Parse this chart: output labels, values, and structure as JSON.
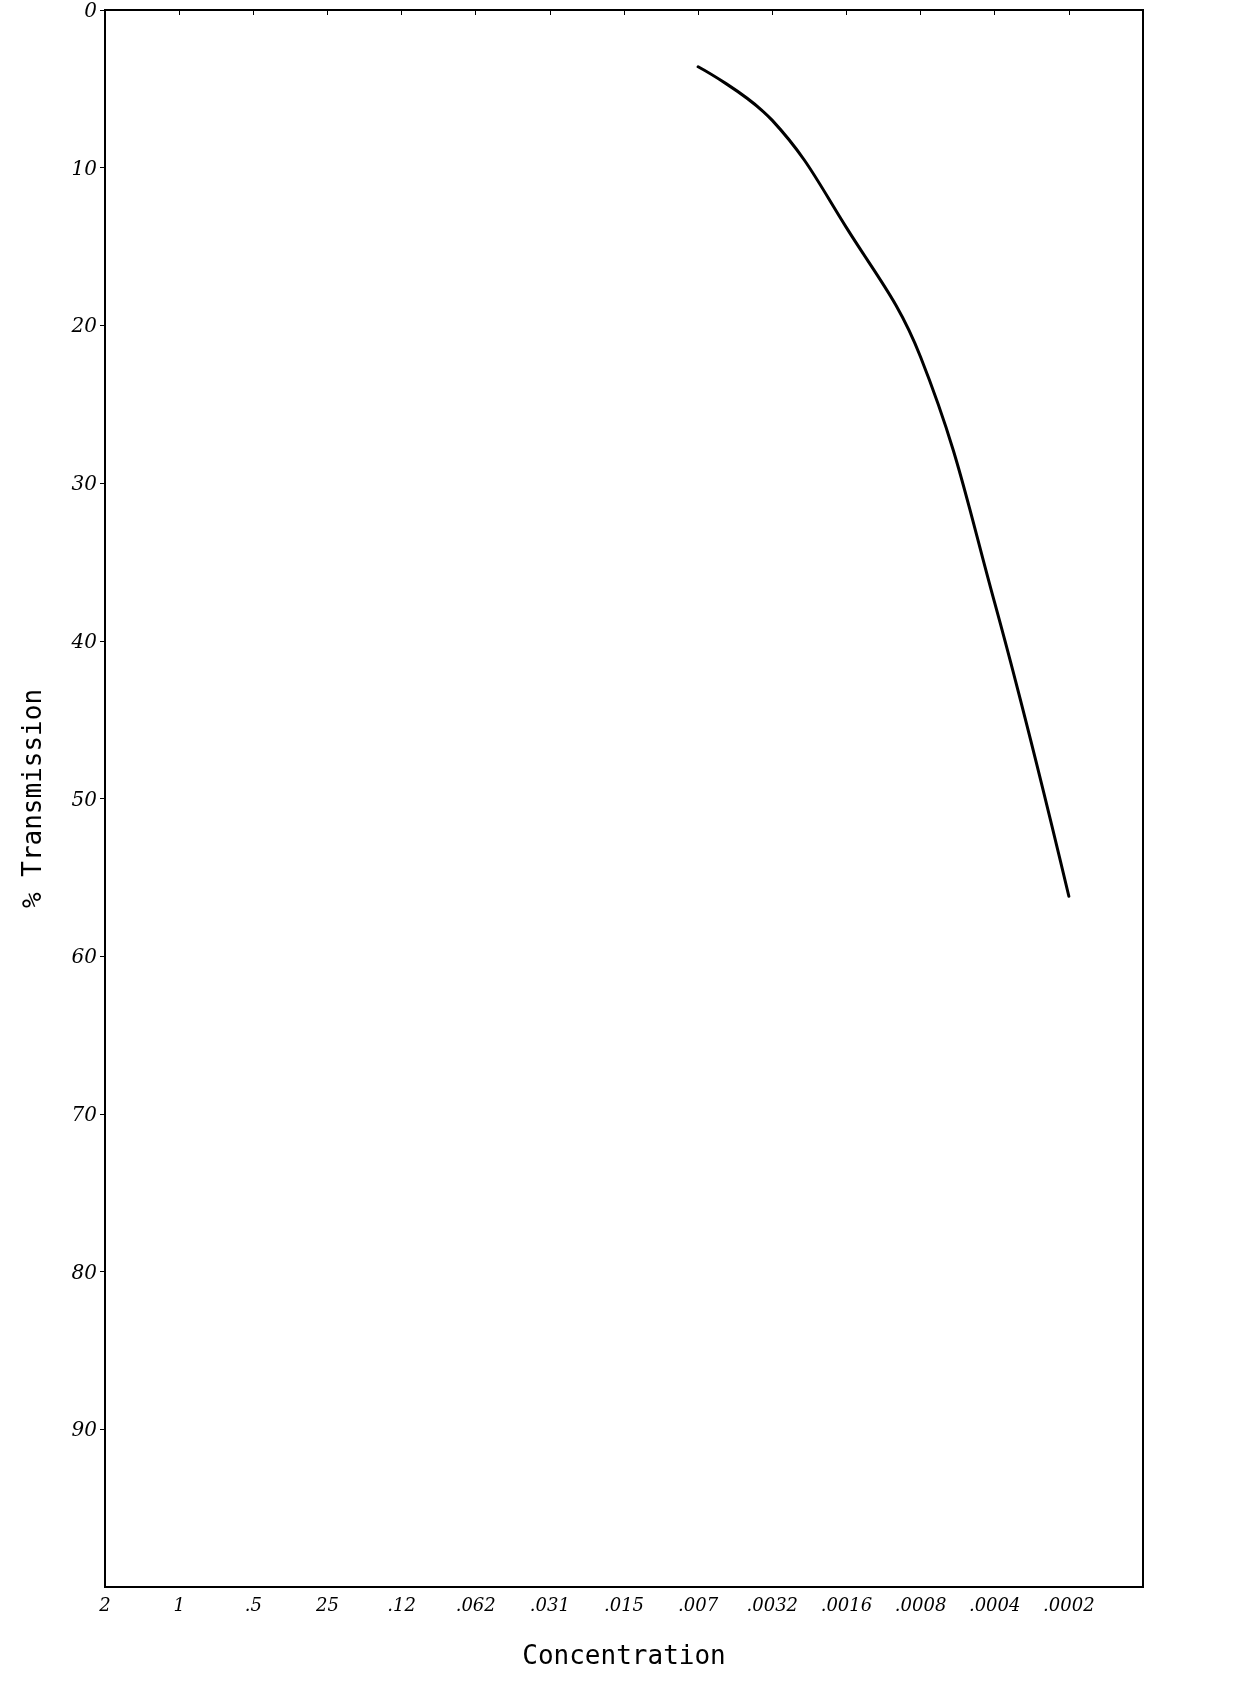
{
  "chart_data": {
    "type": "line",
    "xlabel": "Concentration",
    "ylabel": "% Transmission",
    "categories": [
      "2",
      "1",
      ".5",
      "25",
      ".12",
      ".062",
      ".031",
      ".015",
      ".007",
      ".0032",
      ".0016",
      ".0008",
      ".0004",
      ".0002",
      null
    ],
    "series": [
      {
        "color": "#000000",
        "values": [
          null,
          null,
          null,
          null,
          null,
          null,
          null,
          null,
          3.6,
          7,
          13.8,
          22,
          37.6,
          56.2,
          null
        ]
      }
    ],
    "ylim": [
      100,
      0
    ],
    "yticks": [
      0,
      10,
      20,
      30,
      40,
      50,
      60,
      70,
      80,
      90
    ],
    "grid": false,
    "marker": "none",
    "line_style": "solid"
  }
}
